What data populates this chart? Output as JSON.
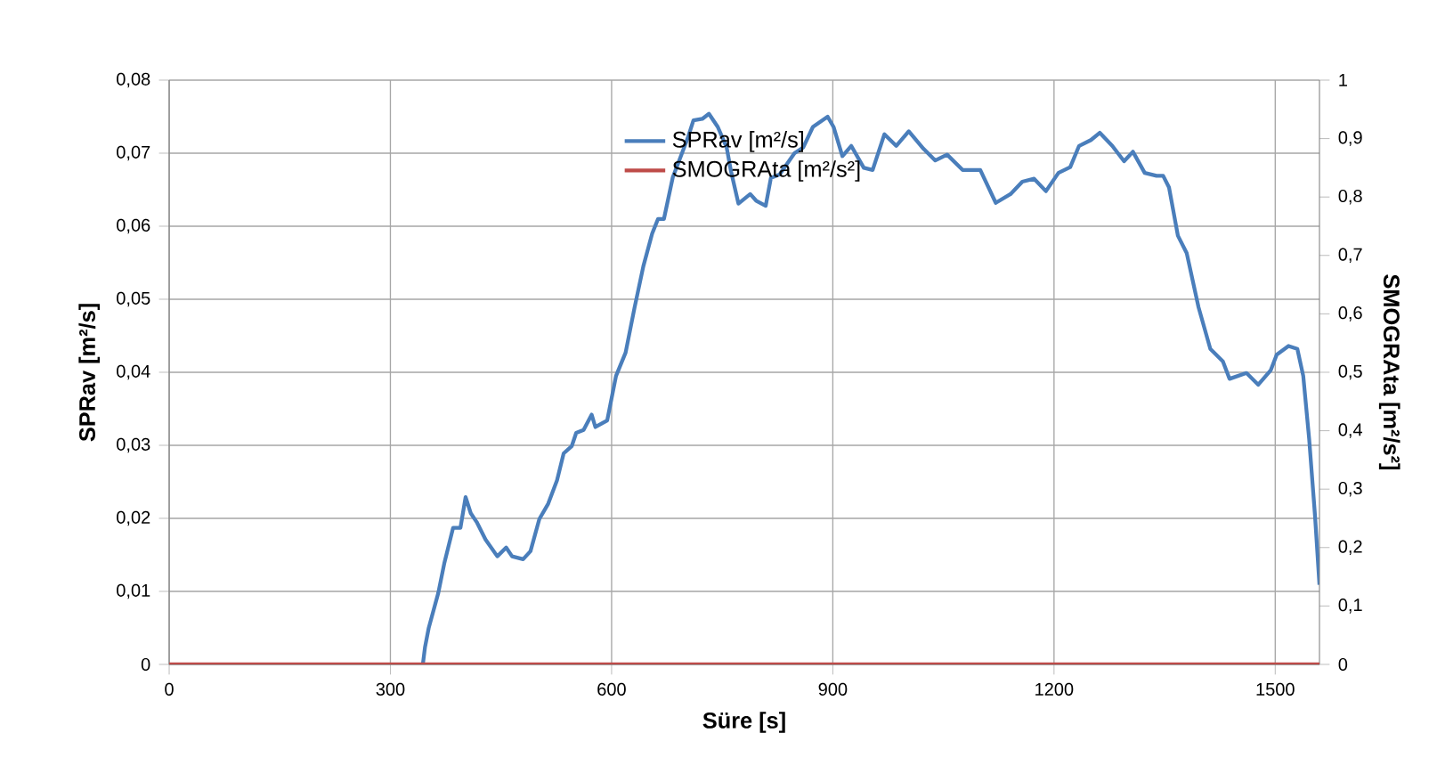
{
  "chart_data": {
    "type": "line",
    "xlabel": "Süre [s]",
    "ylabel": "SPRav [m²/s]",
    "y2label": "SMOGRAta [m²/s²]",
    "xlim": [
      0,
      1560
    ],
    "xticks": [
      0,
      300,
      600,
      900,
      1200,
      1500
    ],
    "ylim": [
      0,
      0.08
    ],
    "yticks": [
      0,
      {
        "value": 0.01,
        "label": "0,01"
      },
      {
        "value": 0.02,
        "label": "0,02"
      },
      {
        "value": 0.03,
        "label": "0,03"
      },
      {
        "value": 0.04,
        "label": "0,04"
      },
      {
        "value": 0.05,
        "label": "0,05"
      },
      {
        "value": 0.06,
        "label": "0,06"
      },
      {
        "value": 0.07,
        "label": "0,07"
      },
      {
        "value": 0.08,
        "label": "0,08"
      }
    ],
    "y2lim": [
      0,
      1
    ],
    "y2ticks": [
      0,
      {
        "value": 0.1,
        "label": "0,1"
      },
      {
        "value": 0.2,
        "label": "0,2"
      },
      {
        "value": 0.3,
        "label": "0,3"
      },
      {
        "value": 0.4,
        "label": "0,4"
      },
      {
        "value": 0.5,
        "label": "0,5"
      },
      {
        "value": 0.6,
        "label": "0,6"
      },
      {
        "value": 0.7,
        "label": "0,7"
      },
      {
        "value": 0.8,
        "label": "0,8"
      },
      {
        "value": 0.9,
        "label": "0,9"
      },
      1
    ],
    "grid": true,
    "legend": "top",
    "marker": "none",
    "line_style": "solid",
    "series": [
      {
        "name": "SPRav [m²/s]",
        "color": "#4a7ebb",
        "x": [
          344,
          347,
          352,
          365,
          373,
          385,
          395,
          402,
          409,
          417,
          429,
          445,
          457,
          465,
          480,
          490,
          502,
          514,
          526,
          535,
          546,
          552,
          562,
          573,
          578,
          594,
          606,
          619,
          631,
          643,
          655,
          663,
          671,
          683,
          691,
          703,
          711,
          723,
          732,
          744,
          756,
          762,
          772,
          788,
          796,
          809,
          816,
          828,
          848,
          860,
          873,
          893,
          901,
          913,
          925,
          942,
          954,
          970,
          986,
          1003,
          1023,
          1039,
          1055,
          1076,
          1100,
          1121,
          1141,
          1157,
          1173,
          1189,
          1206,
          1222,
          1234,
          1250,
          1262,
          1279,
          1295,
          1307,
          1323,
          1339,
          1348,
          1356,
          1368,
          1380,
          1396,
          1412,
          1429,
          1438,
          1461,
          1477,
          1494,
          1502,
          1518,
          1530,
          1538,
          1546,
          1554,
          1560
        ],
        "values": [
          0,
          0.0024,
          0.005,
          0.0098,
          0.0138,
          0.0187,
          0.0187,
          0.0229,
          0.0207,
          0.0195,
          0.0171,
          0.0148,
          0.016,
          0.0148,
          0.0144,
          0.0155,
          0.0199,
          0.022,
          0.0252,
          0.0289,
          0.0299,
          0.0317,
          0.0321,
          0.0342,
          0.0325,
          0.0334,
          0.0395,
          0.0427,
          0.0488,
          0.0545,
          0.059,
          0.061,
          0.061,
          0.0667,
          0.0688,
          0.072,
          0.0745,
          0.0747,
          0.0754,
          0.0736,
          0.0708,
          0.0675,
          0.0631,
          0.0644,
          0.0635,
          0.0628,
          0.0666,
          0.0671,
          0.07,
          0.0708,
          0.0736,
          0.075,
          0.0736,
          0.0696,
          0.071,
          0.068,
          0.0677,
          0.0726,
          0.071,
          0.073,
          0.0706,
          0.069,
          0.0698,
          0.0677,
          0.0677,
          0.0632,
          0.0644,
          0.0661,
          0.0665,
          0.0648,
          0.0673,
          0.0681,
          0.071,
          0.0718,
          0.0728,
          0.071,
          0.0689,
          0.0702,
          0.0673,
          0.0669,
          0.0669,
          0.0653,
          0.0587,
          0.0563,
          0.0489,
          0.0432,
          0.0415,
          0.0391,
          0.0399,
          0.0383,
          0.0403,
          0.0424,
          0.0436,
          0.0432,
          0.0395,
          0.0309,
          0.0203,
          0.0109
        ]
      },
      {
        "name": "SMOGRAta [m²/s²]",
        "color": "#be4b48",
        "axis": "y2",
        "x": [
          0,
          1560
        ],
        "values": [
          0,
          0
        ]
      }
    ]
  }
}
